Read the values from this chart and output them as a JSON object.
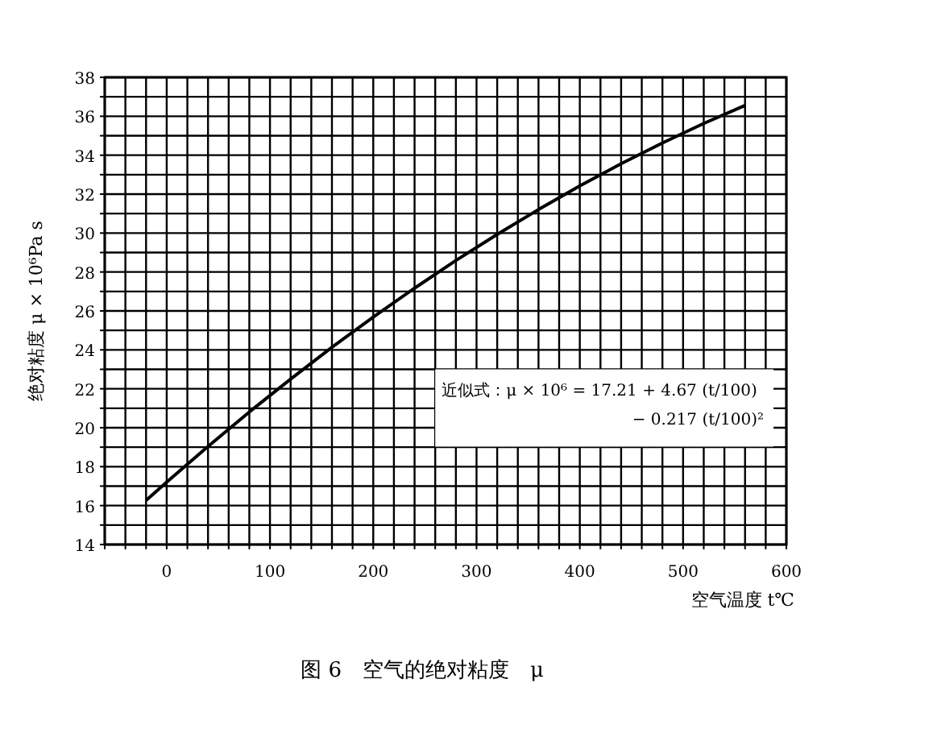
{
  "chart_data": {
    "type": "line",
    "title": "图 6　空气的绝对粘度　μ",
    "xlabel": "空气温度 t℃",
    "ylabel": "绝对粘度 μ × 10⁶Pa s",
    "x": [
      -20,
      0,
      40,
      80,
      120,
      160,
      200,
      240,
      280,
      320,
      360,
      400,
      440,
      480,
      520,
      560
    ],
    "series": [
      {
        "color": "#000000",
        "values": [
          16.27,
          17.21,
          19.04,
          20.81,
          22.5,
          24.13,
          25.68,
          27.17,
          28.59,
          29.93,
          31.21,
          32.42,
          33.56,
          34.63,
          35.63,
          36.56
        ]
      }
    ],
    "xlim": [
      -60,
      600
    ],
    "ylim": [
      14,
      38
    ],
    "xticks": [
      {
        "value": -60,
        "label": null
      },
      {
        "value": -40,
        "label": null
      },
      {
        "value": -20,
        "label": null
      },
      0,
      {
        "value": 20,
        "label": null
      },
      {
        "value": 40,
        "label": null
      },
      {
        "value": 60,
        "label": null
      },
      {
        "value": 80,
        "label": null
      },
      100,
      {
        "value": 120,
        "label": null
      },
      {
        "value": 140,
        "label": null
      },
      {
        "value": 160,
        "label": null
      },
      {
        "value": 180,
        "label": null
      },
      200,
      {
        "value": 220,
        "label": null
      },
      {
        "value": 240,
        "label": null
      },
      {
        "value": 260,
        "label": null
      },
      {
        "value": 280,
        "label": null
      },
      300,
      {
        "value": 320,
        "label": null
      },
      {
        "value": 340,
        "label": null
      },
      {
        "value": 360,
        "label": null
      },
      {
        "value": 380,
        "label": null
      },
      400,
      {
        "value": 420,
        "label": null
      },
      {
        "value": 440,
        "label": null
      },
      {
        "value": 460,
        "label": null
      },
      {
        "value": 480,
        "label": null
      },
      500,
      {
        "value": 520,
        "label": null
      },
      {
        "value": 540,
        "label": null
      },
      {
        "value": 560,
        "label": null
      },
      {
        "value": 580,
        "label": null
      },
      600
    ],
    "yticks": [
      14,
      {
        "value": 15,
        "label": null
      },
      16,
      {
        "value": 17,
        "label": null
      },
      18,
      {
        "value": 19,
        "label": null
      },
      20,
      {
        "value": 21,
        "label": null
      },
      22,
      {
        "value": 23,
        "label": null
      },
      24,
      {
        "value": 25,
        "label": null
      },
      26,
      {
        "value": 27,
        "label": null
      },
      28,
      {
        "value": 29,
        "label": null
      },
      30,
      {
        "value": 31,
        "label": null
      },
      32,
      {
        "value": 33,
        "label": null
      },
      34,
      {
        "value": 35,
        "label": null
      },
      36,
      {
        "value": 37,
        "label": null
      },
      38
    ],
    "grid": true,
    "line_style": "solid",
    "annotations": [
      "近似式：μ × 10⁶ = 17.21 + 4.67 (t/100)",
      "− 0.217 (t/100)²"
    ]
  }
}
